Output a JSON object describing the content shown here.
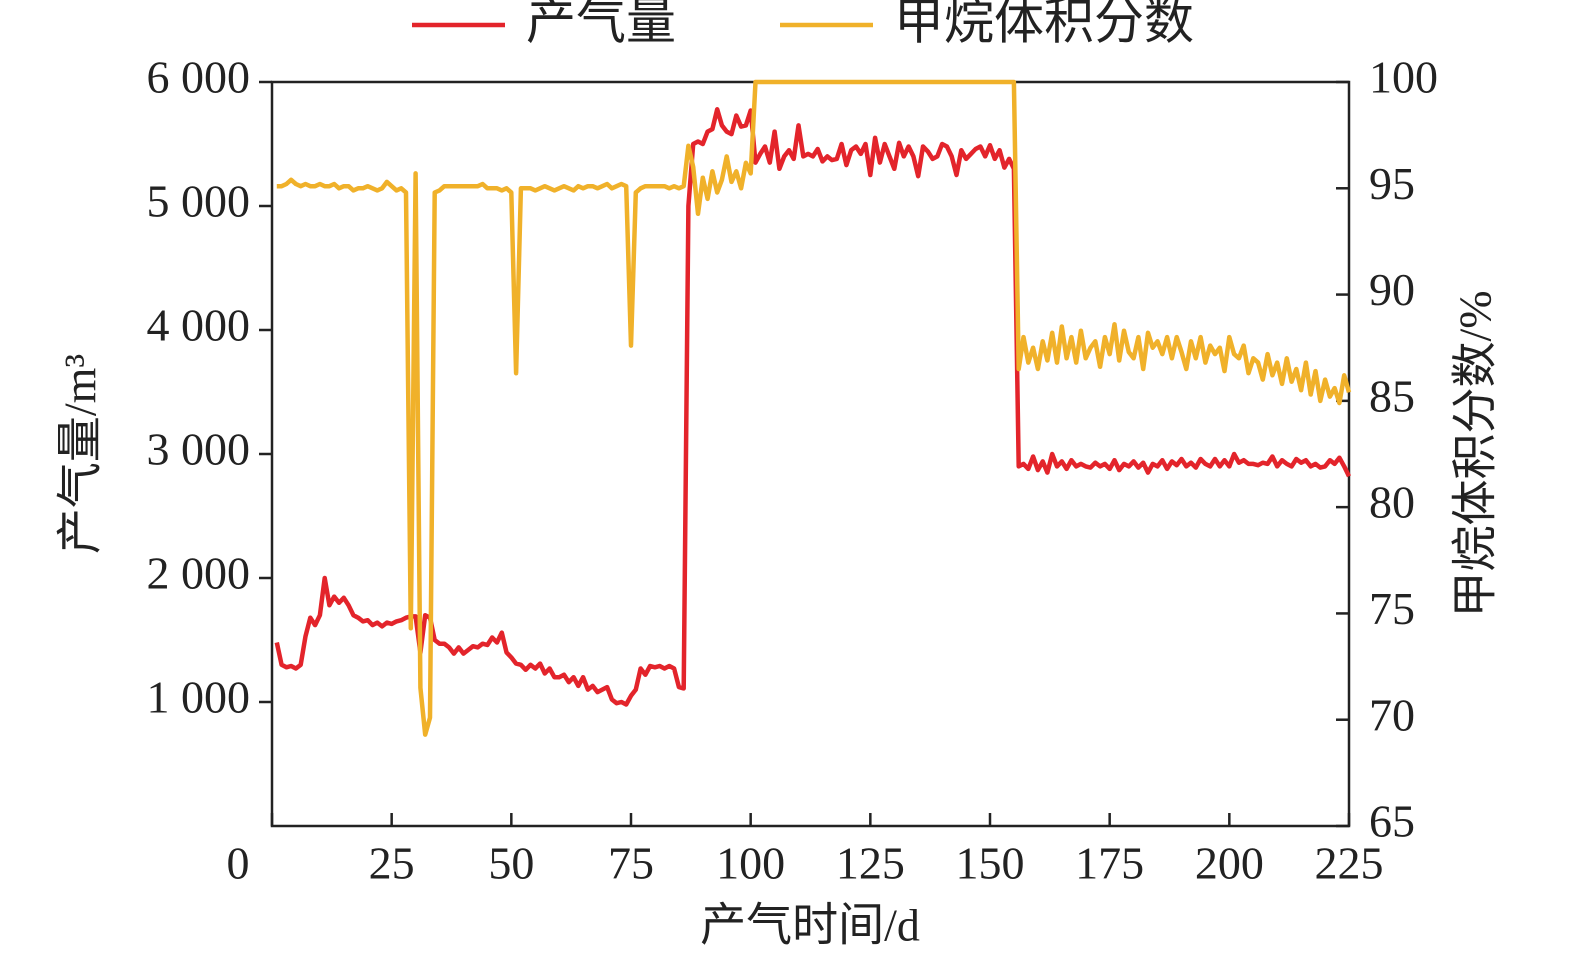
{
  "chart_data": {
    "type": "line",
    "x_label": "产气时间/d",
    "y_label": "产气量/m³",
    "y2_label": "甲烷体积分数/%",
    "xlim": [
      0,
      225
    ],
    "xticks": [
      0,
      25,
      50,
      75,
      100,
      125,
      150,
      175,
      200,
      225
    ],
    "ylim": [
      0,
      6000
    ],
    "yticks": [
      {
        "value": 1000,
        "label": "1 000"
      },
      {
        "value": 2000,
        "label": "2 000"
      },
      {
        "value": 3000,
        "label": "3 000"
      },
      {
        "value": 4000,
        "label": "4 000"
      },
      {
        "value": 5000,
        "label": "5 000"
      },
      {
        "value": 6000,
        "label": "6 000"
      }
    ],
    "y2lim": [
      65,
      100
    ],
    "y2ticks": [
      65,
      70,
      75,
      80,
      85,
      90,
      95,
      100
    ],
    "x": [
      1,
      2,
      3,
      4,
      5,
      6,
      7,
      8,
      9,
      10,
      11,
      12,
      13,
      14,
      15,
      16,
      17,
      18,
      19,
      20,
      21,
      22,
      23,
      24,
      25,
      26,
      27,
      28,
      29,
      30,
      31,
      32,
      33,
      34,
      35,
      36,
      37,
      38,
      39,
      40,
      41,
      42,
      43,
      44,
      45,
      46,
      47,
      48,
      49,
      50,
      51,
      52,
      53,
      54,
      55,
      56,
      57,
      58,
      59,
      60,
      61,
      62,
      63,
      64,
      65,
      66,
      67,
      68,
      69,
      70,
      71,
      72,
      73,
      74,
      75,
      76,
      77,
      78,
      79,
      80,
      81,
      82,
      83,
      84,
      85,
      86,
      87,
      88,
      89,
      90,
      91,
      92,
      93,
      94,
      95,
      96,
      97,
      98,
      99,
      100,
      101,
      102,
      103,
      104,
      105,
      106,
      107,
      108,
      109,
      110,
      111,
      112,
      113,
      114,
      115,
      116,
      117,
      118,
      119,
      120,
      121,
      122,
      123,
      124,
      125,
      126,
      127,
      128,
      129,
      130,
      131,
      132,
      133,
      134,
      135,
      136,
      137,
      138,
      139,
      140,
      141,
      142,
      143,
      144,
      145,
      146,
      147,
      148,
      149,
      150,
      151,
      152,
      153,
      154,
      155,
      156,
      157,
      158,
      159,
      160,
      161,
      162,
      163,
      164,
      165,
      166,
      167,
      168,
      169,
      170,
      171,
      172,
      173,
      174,
      175,
      176,
      177,
      178,
      179,
      180,
      181,
      182,
      183,
      184,
      185,
      186,
      187,
      188,
      189,
      190,
      191,
      192,
      193,
      194,
      195,
      196,
      197,
      198,
      199,
      200,
      201,
      202,
      203,
      204,
      205,
      206,
      207,
      208,
      209,
      210,
      211,
      212,
      213,
      214,
      215,
      216,
      217,
      218,
      219,
      220,
      221,
      222,
      223,
      224,
      225
    ],
    "series": [
      {
        "name": "产气量",
        "color": "#e3242b",
        "axis": "y",
        "values": [
          1480,
          1300,
          1280,
          1290,
          1270,
          1300,
          1530,
          1680,
          1620,
          1700,
          2000,
          1780,
          1850,
          1800,
          1840,
          1780,
          1700,
          1680,
          1650,
          1660,
          1620,
          1640,
          1610,
          1640,
          1630,
          1650,
          1660,
          1680,
          1690,
          1690,
          1400,
          1700,
          1680,
          1500,
          1470,
          1470,
          1440,
          1390,
          1440,
          1390,
          1420,
          1450,
          1440,
          1470,
          1460,
          1520,
          1480,
          1560,
          1400,
          1360,
          1310,
          1300,
          1260,
          1300,
          1270,
          1310,
          1230,
          1270,
          1200,
          1200,
          1220,
          1160,
          1200,
          1130,
          1200,
          1100,
          1130,
          1080,
          1100,
          1120,
          1020,
          990,
          1000,
          980,
          1050,
          1100,
          1270,
          1220,
          1290,
          1280,
          1290,
          1270,
          1290,
          1270,
          1120,
          1110,
          5000,
          5500,
          5520,
          5500,
          5600,
          5620,
          5780,
          5650,
          5600,
          5580,
          5730,
          5640,
          5650,
          5770,
          5350,
          5420,
          5480,
          5350,
          5600,
          5300,
          5400,
          5450,
          5380,
          5650,
          5400,
          5420,
          5400,
          5460,
          5360,
          5400,
          5370,
          5380,
          5500,
          5330,
          5450,
          5480,
          5420,
          5500,
          5250,
          5550,
          5350,
          5500,
          5400,
          5300,
          5510,
          5400,
          5480,
          5400,
          5240,
          5480,
          5440,
          5380,
          5400,
          5500,
          5480,
          5400,
          5250,
          5450,
          5380,
          5420,
          5460,
          5480,
          5400,
          5490,
          5380,
          5450,
          5310,
          5380,
          5300,
          2900,
          2920,
          2880,
          2980,
          2870,
          2940,
          2850,
          3000,
          2900,
          2940,
          2880,
          2950,
          2900,
          2920,
          2900,
          2890,
          2930,
          2900,
          2920,
          2880,
          2950,
          2870,
          2920,
          2900,
          2940,
          2890,
          2930,
          2850,
          2920,
          2900,
          2950,
          2880,
          2940,
          2910,
          2960,
          2900,
          2930,
          2890,
          2960,
          2920,
          2900,
          2960,
          2900,
          2950,
          2900,
          3000,
          2930,
          2950,
          2920,
          2920,
          2910,
          2930,
          2920,
          2980,
          2900,
          2950,
          2920,
          2900,
          2960,
          2930,
          2950,
          2900,
          2920,
          2890,
          2900,
          2950,
          2920,
          2970,
          2900,
          2820
        ]
      },
      {
        "name": "甲烷体积分数",
        "color": "#f0b12a",
        "axis": "y2",
        "values": [
          95.1,
          95.1,
          95.2,
          95.4,
          95.2,
          95.1,
          95.2,
          95.1,
          95.1,
          95.2,
          95.1,
          95.1,
          95.2,
          95.0,
          95.1,
          95.1,
          94.9,
          95.0,
          95.0,
          95.1,
          95.0,
          94.9,
          95.0,
          95.3,
          95.1,
          94.9,
          95.0,
          94.8,
          74.3,
          95.7,
          71.5,
          69.3,
          70.1,
          94.8,
          94.9,
          95.1,
          95.1,
          95.1,
          95.1,
          95.1,
          95.1,
          95.1,
          95.1,
          95.2,
          95.0,
          95.0,
          95.0,
          94.9,
          95.0,
          94.8,
          86.3,
          95.0,
          95.0,
          95.0,
          94.9,
          95.0,
          95.1,
          95.0,
          94.9,
          95.0,
          95.1,
          95.0,
          94.9,
          95.1,
          95.0,
          95.1,
          95.1,
          95.0,
          95.1,
          95.2,
          95.0,
          95.1,
          95.2,
          95.1,
          87.6,
          94.8,
          95.0,
          95.1,
          95.1,
          95.1,
          95.1,
          95.1,
          95.0,
          95.1,
          95.0,
          95.1,
          97.0,
          96.0,
          93.8,
          95.5,
          94.5,
          95.8,
          94.8,
          95.4,
          96.5,
          95.3,
          95.8,
          95.0,
          96.2,
          95.7,
          100,
          100,
          100,
          100,
          100,
          100,
          100,
          100,
          100,
          100,
          100,
          100,
          100,
          100,
          100,
          100,
          100,
          100,
          100,
          100,
          100,
          100,
          100,
          100,
          100,
          100,
          100,
          100,
          100,
          100,
          100,
          100,
          100,
          100,
          100,
          100,
          100,
          100,
          100,
          100,
          100,
          100,
          100,
          100,
          100,
          100,
          100,
          100,
          100,
          100,
          100,
          100,
          100,
          100,
          100,
          86.5,
          88.0,
          86.8,
          87.5,
          86.5,
          87.8,
          86.9,
          88.2,
          86.8,
          88.5,
          87.0,
          88.0,
          86.8,
          88.3,
          87.0,
          87.5,
          87.8,
          86.6,
          88.0,
          87.2,
          88.6,
          86.9,
          88.3,
          87.3,
          87.0,
          88.0,
          86.5,
          88.2,
          87.5,
          87.8,
          87.2,
          88.0,
          87.0,
          88.0,
          87.3,
          86.5,
          87.8,
          87.0,
          88.0,
          86.8,
          87.6,
          87.2,
          87.5,
          86.4,
          88.0,
          87.2,
          87.0,
          87.6,
          86.3,
          87.0,
          86.8,
          86.0,
          87.2,
          86.2,
          86.8,
          85.8,
          87.0,
          85.9,
          86.5,
          85.5,
          86.8,
          85.3,
          86.4,
          85.0,
          86.0,
          85.2,
          85.6,
          84.9,
          86.2,
          85.4
        ]
      }
    ]
  }
}
